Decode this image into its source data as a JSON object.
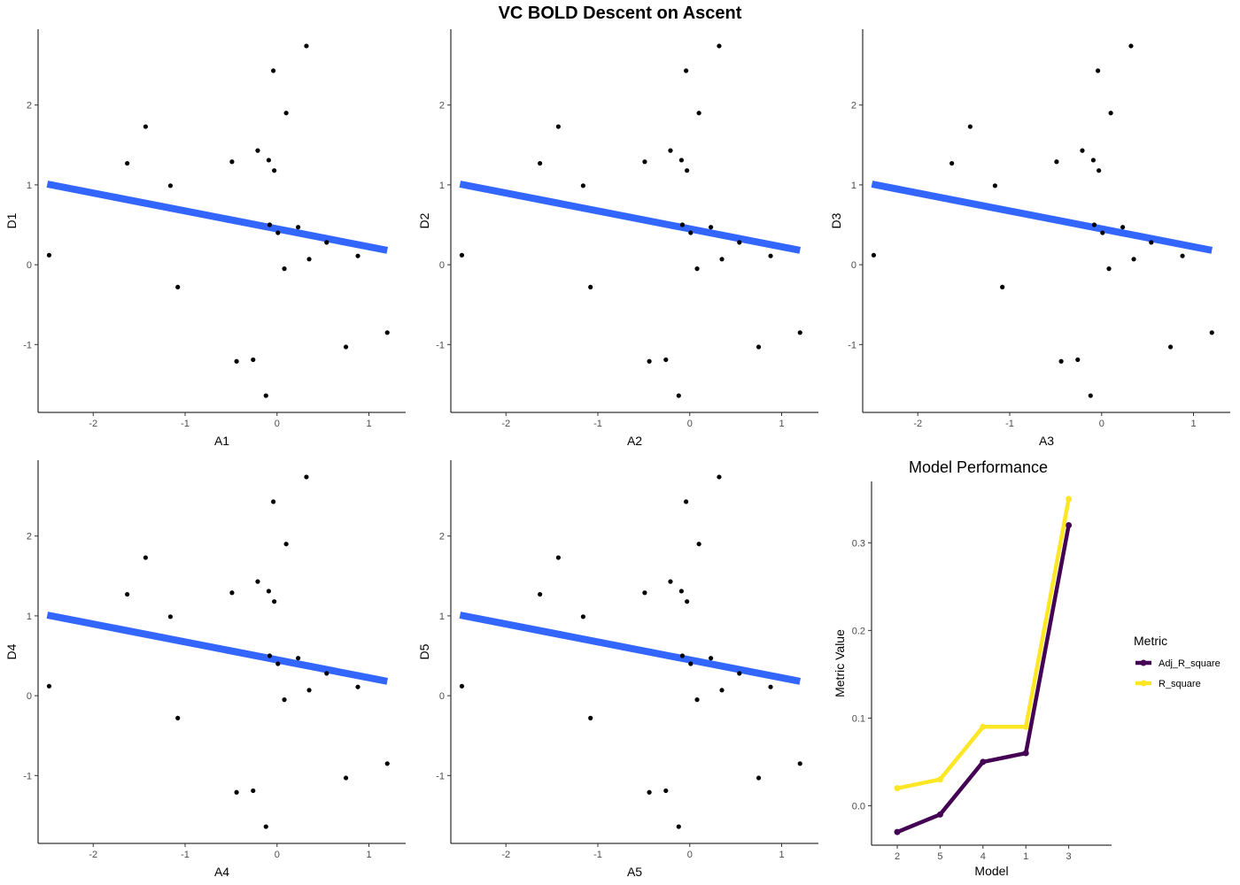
{
  "figure_title": "VC BOLD Descent on Ascent",
  "chart_data": [
    {
      "type": "scatter",
      "xlabel": "A1",
      "ylabel": "D1",
      "xlim": [
        -2.6,
        1.4
      ],
      "ylim": [
        -1.85,
        2.95
      ],
      "xticks": [
        -2,
        -1,
        0,
        1
      ],
      "yticks": [
        -1,
        0,
        1,
        2
      ],
      "point_color": "#000000",
      "fit_color": "#3366FF",
      "fit_line": {
        "x": [
          -2.5,
          1.2
        ],
        "y": [
          1.01,
          0.18
        ]
      },
      "points": [
        {
          "x": -2.48,
          "y": 0.12
        },
        {
          "x": -1.63,
          "y": 1.27
        },
        {
          "x": -1.43,
          "y": 1.73
        },
        {
          "x": -1.16,
          "y": 0.99
        },
        {
          "x": -1.08,
          "y": -0.28
        },
        {
          "x": -0.49,
          "y": 1.29
        },
        {
          "x": -0.44,
          "y": -1.21
        },
        {
          "x": -0.26,
          "y": -1.19
        },
        {
          "x": -0.21,
          "y": 1.43
        },
        {
          "x": -0.12,
          "y": -1.64
        },
        {
          "x": -0.09,
          "y": 1.31
        },
        {
          "x": -0.04,
          "y": 2.43
        },
        {
          "x": -0.03,
          "y": 1.18
        },
        {
          "x": 0.01,
          "y": 0.4
        },
        {
          "x": 0.08,
          "y": -0.05
        },
        {
          "x": 0.1,
          "y": 1.9
        },
        {
          "x": 0.23,
          "y": 0.47
        },
        {
          "x": 0.32,
          "y": 2.74
        },
        {
          "x": 0.35,
          "y": 0.07
        },
        {
          "x": 0.54,
          "y": 0.28
        },
        {
          "x": 0.75,
          "y": -1.03
        },
        {
          "x": 0.88,
          "y": 0.11
        },
        {
          "x": 1.2,
          "y": -0.85
        },
        {
          "x": -0.08,
          "y": 0.5
        }
      ]
    },
    {
      "type": "scatter",
      "xlabel": "A2",
      "ylabel": "D2",
      "xlim": [
        -2.6,
        1.4
      ],
      "ylim": [
        -1.85,
        2.95
      ],
      "xticks": [
        -2,
        -1,
        0,
        1
      ],
      "yticks": [
        -1,
        0,
        1,
        2
      ],
      "point_color": "#000000",
      "fit_color": "#3366FF",
      "fit_line": {
        "x": [
          -2.5,
          1.2
        ],
        "y": [
          1.01,
          0.18
        ]
      },
      "points": [
        {
          "x": -2.48,
          "y": 0.12
        },
        {
          "x": -1.63,
          "y": 1.27
        },
        {
          "x": -1.43,
          "y": 1.73
        },
        {
          "x": -1.16,
          "y": 0.99
        },
        {
          "x": -1.08,
          "y": -0.28
        },
        {
          "x": -0.49,
          "y": 1.29
        },
        {
          "x": -0.44,
          "y": -1.21
        },
        {
          "x": -0.26,
          "y": -1.19
        },
        {
          "x": -0.21,
          "y": 1.43
        },
        {
          "x": -0.12,
          "y": -1.64
        },
        {
          "x": -0.09,
          "y": 1.31
        },
        {
          "x": -0.04,
          "y": 2.43
        },
        {
          "x": -0.03,
          "y": 1.18
        },
        {
          "x": 0.01,
          "y": 0.4
        },
        {
          "x": 0.08,
          "y": -0.05
        },
        {
          "x": 0.1,
          "y": 1.9
        },
        {
          "x": 0.23,
          "y": 0.47
        },
        {
          "x": 0.32,
          "y": 2.74
        },
        {
          "x": 0.35,
          "y": 0.07
        },
        {
          "x": 0.54,
          "y": 0.28
        },
        {
          "x": 0.75,
          "y": -1.03
        },
        {
          "x": 0.88,
          "y": 0.11
        },
        {
          "x": 1.2,
          "y": -0.85
        },
        {
          "x": -0.08,
          "y": 0.5
        }
      ]
    },
    {
      "type": "scatter",
      "xlabel": "A3",
      "ylabel": "D3",
      "xlim": [
        -2.6,
        1.4
      ],
      "ylim": [
        -1.85,
        2.95
      ],
      "xticks": [
        -2,
        -1,
        0,
        1
      ],
      "yticks": [
        -1,
        0,
        1,
        2
      ],
      "point_color": "#000000",
      "fit_color": "#3366FF",
      "fit_line": {
        "x": [
          -2.5,
          1.2
        ],
        "y": [
          1.01,
          0.18
        ]
      },
      "points": [
        {
          "x": -2.48,
          "y": 0.12
        },
        {
          "x": -1.63,
          "y": 1.27
        },
        {
          "x": -1.43,
          "y": 1.73
        },
        {
          "x": -1.16,
          "y": 0.99
        },
        {
          "x": -1.08,
          "y": -0.28
        },
        {
          "x": -0.49,
          "y": 1.29
        },
        {
          "x": -0.44,
          "y": -1.21
        },
        {
          "x": -0.26,
          "y": -1.19
        },
        {
          "x": -0.21,
          "y": 1.43
        },
        {
          "x": -0.12,
          "y": -1.64
        },
        {
          "x": -0.09,
          "y": 1.31
        },
        {
          "x": -0.04,
          "y": 2.43
        },
        {
          "x": -0.03,
          "y": 1.18
        },
        {
          "x": 0.01,
          "y": 0.4
        },
        {
          "x": 0.08,
          "y": -0.05
        },
        {
          "x": 0.1,
          "y": 1.9
        },
        {
          "x": 0.23,
          "y": 0.47
        },
        {
          "x": 0.32,
          "y": 2.74
        },
        {
          "x": 0.35,
          "y": 0.07
        },
        {
          "x": 0.54,
          "y": 0.28
        },
        {
          "x": 0.75,
          "y": -1.03
        },
        {
          "x": 0.88,
          "y": 0.11
        },
        {
          "x": 1.2,
          "y": -0.85
        },
        {
          "x": -0.08,
          "y": 0.5
        }
      ]
    },
    {
      "type": "scatter",
      "xlabel": "A4",
      "ylabel": "D4",
      "xlim": [
        -2.6,
        1.4
      ],
      "ylim": [
        -1.85,
        2.95
      ],
      "xticks": [
        -2,
        -1,
        0,
        1
      ],
      "yticks": [
        -1,
        0,
        1,
        2
      ],
      "point_color": "#000000",
      "fit_color": "#3366FF",
      "fit_line": {
        "x": [
          -2.5,
          1.2
        ],
        "y": [
          1.01,
          0.18
        ]
      },
      "points": [
        {
          "x": -2.48,
          "y": 0.12
        },
        {
          "x": -1.63,
          "y": 1.27
        },
        {
          "x": -1.43,
          "y": 1.73
        },
        {
          "x": -1.16,
          "y": 0.99
        },
        {
          "x": -1.08,
          "y": -0.28
        },
        {
          "x": -0.49,
          "y": 1.29
        },
        {
          "x": -0.44,
          "y": -1.21
        },
        {
          "x": -0.26,
          "y": -1.19
        },
        {
          "x": -0.21,
          "y": 1.43
        },
        {
          "x": -0.12,
          "y": -1.64
        },
        {
          "x": -0.09,
          "y": 1.31
        },
        {
          "x": -0.04,
          "y": 2.43
        },
        {
          "x": -0.03,
          "y": 1.18
        },
        {
          "x": 0.01,
          "y": 0.4
        },
        {
          "x": 0.08,
          "y": -0.05
        },
        {
          "x": 0.1,
          "y": 1.9
        },
        {
          "x": 0.23,
          "y": 0.47
        },
        {
          "x": 0.32,
          "y": 2.74
        },
        {
          "x": 0.35,
          "y": 0.07
        },
        {
          "x": 0.54,
          "y": 0.28
        },
        {
          "x": 0.75,
          "y": -1.03
        },
        {
          "x": 0.88,
          "y": 0.11
        },
        {
          "x": 1.2,
          "y": -0.85
        },
        {
          "x": -0.08,
          "y": 0.5
        }
      ]
    },
    {
      "type": "scatter",
      "xlabel": "A5",
      "ylabel": "D5",
      "xlim": [
        -2.6,
        1.4
      ],
      "ylim": [
        -1.85,
        2.95
      ],
      "xticks": [
        -2,
        -1,
        0,
        1
      ],
      "yticks": [
        -1,
        0,
        1,
        2
      ],
      "point_color": "#000000",
      "fit_color": "#3366FF",
      "fit_line": {
        "x": [
          -2.5,
          1.2
        ],
        "y": [
          1.01,
          0.18
        ]
      },
      "points": [
        {
          "x": -2.48,
          "y": 0.12
        },
        {
          "x": -1.63,
          "y": 1.27
        },
        {
          "x": -1.43,
          "y": 1.73
        },
        {
          "x": -1.16,
          "y": 0.99
        },
        {
          "x": -1.08,
          "y": -0.28
        },
        {
          "x": -0.49,
          "y": 1.29
        },
        {
          "x": -0.44,
          "y": -1.21
        },
        {
          "x": -0.26,
          "y": -1.19
        },
        {
          "x": -0.21,
          "y": 1.43
        },
        {
          "x": -0.12,
          "y": -1.64
        },
        {
          "x": -0.09,
          "y": 1.31
        },
        {
          "x": -0.04,
          "y": 2.43
        },
        {
          "x": -0.03,
          "y": 1.18
        },
        {
          "x": 0.01,
          "y": 0.4
        },
        {
          "x": 0.08,
          "y": -0.05
        },
        {
          "x": 0.1,
          "y": 1.9
        },
        {
          "x": 0.23,
          "y": 0.47
        },
        {
          "x": 0.32,
          "y": 2.74
        },
        {
          "x": 0.35,
          "y": 0.07
        },
        {
          "x": 0.54,
          "y": 0.28
        },
        {
          "x": 0.75,
          "y": -1.03
        },
        {
          "x": 0.88,
          "y": 0.11
        },
        {
          "x": 1.2,
          "y": -0.85
        },
        {
          "x": -0.08,
          "y": 0.5
        }
      ]
    },
    {
      "type": "line",
      "title": "Model Performance",
      "xlabel": "Model",
      "ylabel": "Metric Value",
      "categories": [
        "2",
        "5",
        "4",
        "1",
        "3"
      ],
      "ylim": [
        -0.045,
        0.37
      ],
      "yticks": [
        0.0,
        0.1,
        0.2,
        0.3
      ],
      "ytick_labels": [
        "0.0",
        "0.1",
        "0.2",
        "0.3"
      ],
      "legend": {
        "title": "Metric",
        "position": "right"
      },
      "series": [
        {
          "name": "Adj_R_square",
          "color": "#440154",
          "values": [
            -0.03,
            -0.01,
            0.05,
            0.06,
            0.32
          ]
        },
        {
          "name": "R_square",
          "color": "#FDE725",
          "values": [
            0.02,
            0.03,
            0.09,
            0.09,
            0.35
          ]
        }
      ]
    }
  ]
}
